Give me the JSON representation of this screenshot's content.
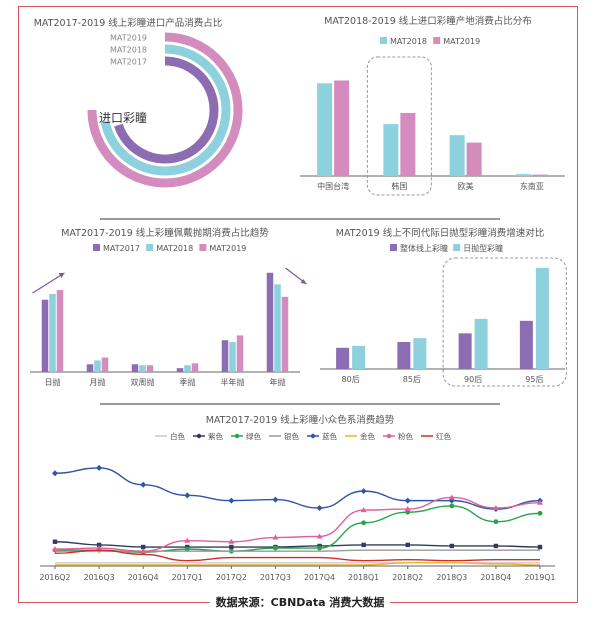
{
  "colors": {
    "purple": "#8c6cb3",
    "blue": "#8dd1de",
    "pink": "#d48bbd",
    "frame": "#d6535f",
    "axis": "#444444",
    "label": "#555555"
  },
  "source_label": "数据来源：CBNData 消费大数据",
  "chart_data": [
    {
      "id": "import-share",
      "type": "radial-bar",
      "title": "MAT2017-2019 线上彩瞳进口产品消费占比",
      "center_label": "进口彩瞳",
      "series": [
        {
          "name": "MAT2019",
          "color": "#d48bbd",
          "value": 0.75
        },
        {
          "name": "MAT2018",
          "color": "#8dd1de",
          "value": 0.72
        },
        {
          "name": "MAT2017",
          "color": "#8c6cb3",
          "value": 0.7
        }
      ]
    },
    {
      "id": "origin-share",
      "type": "bar",
      "title": "MAT2018-2019 线上进口彩瞳产地消费占比分布",
      "categories": [
        "中国台湾",
        "韩国",
        "欧美",
        "东南亚"
      ],
      "series": [
        {
          "name": "MAT2018",
          "color": "#8dd1de",
          "values": [
            100,
            56,
            44,
            2
          ]
        },
        {
          "name": "MAT2019",
          "color": "#d48bbd",
          "values": [
            103,
            68,
            36,
            1.5
          ]
        }
      ],
      "ylim": [
        0,
        110
      ],
      "highlight": "韩国"
    },
    {
      "id": "cycle-share",
      "type": "bar",
      "title": "MAT2017-2019 线上彩瞳佩戴抛期消费占比趋势",
      "categories": [
        "日抛",
        "月抛",
        "双周抛",
        "季抛",
        "半年抛",
        "年抛"
      ],
      "series": [
        {
          "name": "MAT2017",
          "color": "#8c6cb3",
          "values": [
            75,
            8,
            8,
            4,
            33,
            103
          ]
        },
        {
          "name": "MAT2018",
          "color": "#8dd1de",
          "values": [
            81,
            12,
            7,
            7,
            31,
            91
          ]
        },
        {
          "name": "MAT2019",
          "color": "#d48bbd",
          "values": [
            85,
            15,
            7,
            9,
            38,
            78
          ]
        }
      ],
      "ylim": [
        0,
        110
      ],
      "trend_arrows": [
        "日抛",
        "年抛"
      ]
    },
    {
      "id": "generation-growth",
      "type": "bar",
      "title": "MAT2019 线上不同代际日抛型彩瞳消费增速对比",
      "categories": [
        "80后",
        "85后",
        "90后",
        "95后"
      ],
      "series": [
        {
          "name": "整体线上彩瞳",
          "color": "#8c6cb3",
          "values": [
            22,
            28,
            37,
            50
          ]
        },
        {
          "name": "日抛型彩瞳",
          "color": "#8dd1de",
          "values": [
            24,
            32,
            52,
            105
          ]
        }
      ],
      "ylim": [
        0,
        110
      ],
      "highlight": [
        "90后",
        "95后"
      ]
    },
    {
      "id": "color-trend",
      "type": "line",
      "title": "MAT2017-2019 线上彩瞳小众色系消费趋势",
      "x": [
        "2016Q2",
        "2016Q3",
        "2016Q4",
        "2017Q1",
        "2017Q2",
        "2017Q3",
        "2017Q4",
        "2018Q1",
        "2018Q2",
        "2018Q3",
        "2018Q4",
        "2019Q1"
      ],
      "ylim": [
        0,
        110
      ],
      "series": [
        {
          "name": "白色",
          "color": "#c9c9c9",
          "marker": "none",
          "values": [
            3,
            3,
            3,
            3,
            3,
            3,
            3,
            3,
            3,
            3,
            3,
            3
          ]
        },
        {
          "name": "紫色",
          "color": "#2e3d5c",
          "marker": "square",
          "values": [
            23,
            20,
            18,
            18,
            18,
            18,
            19,
            20,
            20,
            19,
            19,
            18
          ]
        },
        {
          "name": "绿色",
          "color": "#29a34a",
          "marker": "circle",
          "values": [
            15,
            15,
            13,
            16,
            14,
            17,
            17,
            41,
            51,
            57,
            42,
            50
          ]
        },
        {
          "name": "银色",
          "color": "#9a9a9a",
          "marker": "none",
          "values": [
            14,
            14,
            14,
            14,
            14,
            14,
            14,
            15,
            15,
            15,
            15,
            15
          ]
        },
        {
          "name": "蓝色",
          "color": "#2f56a8",
          "marker": "diamond",
          "values": [
            88,
            93,
            77,
            67,
            62,
            63,
            55,
            71,
            62,
            62,
            54,
            62
          ]
        },
        {
          "name": "金色",
          "color": "#e8b62a",
          "marker": "none",
          "values": [
            1,
            1,
            1,
            1,
            1,
            1,
            1,
            1,
            3,
            3,
            2,
            1
          ]
        },
        {
          "name": "粉色",
          "color": "#e0609a",
          "marker": "triangle",
          "values": [
            16,
            17,
            14,
            24,
            23,
            27,
            28,
            53,
            54,
            65,
            55,
            60
          ]
        },
        {
          "name": "红色",
          "color": "#d12c2c",
          "marker": "none",
          "values": [
            12,
            15,
            11,
            5,
            8,
            8,
            8,
            5,
            6,
            5,
            6,
            6
          ]
        }
      ]
    }
  ]
}
